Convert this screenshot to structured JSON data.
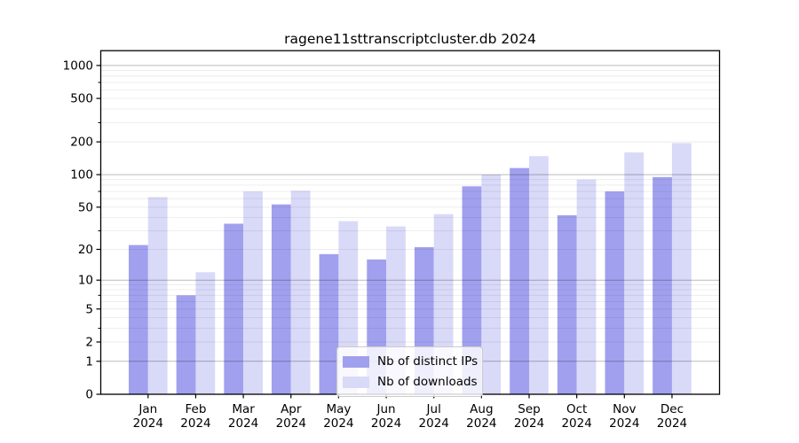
{
  "chart_data": {
    "type": "bar",
    "title": "ragene11sttranscriptcluster.db 2024",
    "categories": [
      "Jan 2024",
      "Feb 2024",
      "Mar 2024",
      "Apr 2024",
      "May 2024",
      "Jun 2024",
      "Jul 2024",
      "Aug 2024",
      "Sep 2024",
      "Oct 2024",
      "Nov 2024",
      "Dec 2024"
    ],
    "series": [
      {
        "name": "Nb of distinct IPs",
        "color": "#a0a0ef",
        "values": [
          22,
          7,
          35,
          53,
          18,
          16,
          21,
          78,
          115,
          42,
          70,
          95
        ]
      },
      {
        "name": "Nb of downloads",
        "color": "#d9d9f8",
        "values": [
          62,
          12,
          70,
          71,
          37,
          33,
          43,
          100,
          148,
          90,
          160,
          195
        ]
      }
    ],
    "xlabel": "",
    "ylabel": "",
    "y_scale": "log10(value+1)",
    "ylim": [
      0,
      1365
    ],
    "y_ticks_labeled": [
      1000,
      500,
      200,
      100,
      50,
      20,
      10,
      5,
      2,
      1,
      0
    ],
    "y_ticks_minor": [
      700,
      300,
      70,
      30,
      7,
      3
    ],
    "grid": "on",
    "grid_major_at": [
      1,
      10,
      100,
      1000
    ],
    "legend_position": "bottom-center",
    "colors": {
      "frame": "#000000",
      "tick_label": "#000000",
      "grid_major": "rgba(0,0,0,0.27)",
      "grid_minor": "rgba(0,0,0,0.08)",
      "legend_border": "#cccccc"
    }
  }
}
